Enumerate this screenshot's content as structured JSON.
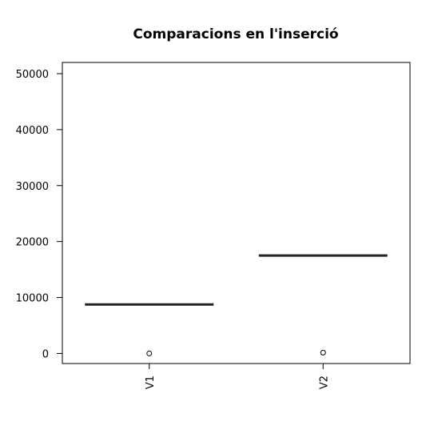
{
  "chart_data": {
    "type": "box",
    "title": "Comparacions en l'inserció",
    "xlabel": "",
    "ylabel": "",
    "ylim": [
      -1800,
      52000
    ],
    "yticks": [
      0,
      10000,
      20000,
      30000,
      40000,
      50000
    ],
    "ytick_labels": [
      "0",
      "10000",
      "20000",
      "30000",
      "40000",
      "50000"
    ],
    "categories": [
      "V1",
      "V2"
    ],
    "medians": [
      8750,
      17500
    ],
    "outliers": [
      [
        0
      ],
      [
        150
      ]
    ],
    "colors": {
      "median": "#222222",
      "frame": "#000000",
      "outlier": "#000000"
    }
  }
}
